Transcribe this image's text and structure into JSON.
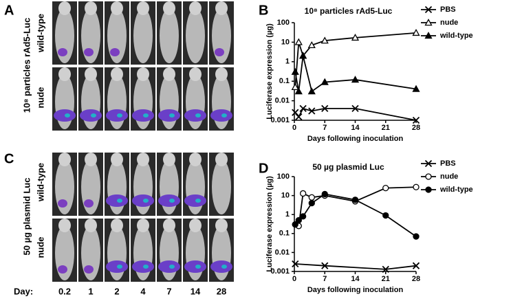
{
  "figure": {
    "panel_labels": [
      "A",
      "B",
      "C",
      "D"
    ],
    "panel_a": {
      "side_label": "10⁸ particles rAd5-Luc",
      "row_labels": [
        "wild-type",
        "nude"
      ]
    },
    "panel_c": {
      "side_label": "50 µg plasmid Luc",
      "row_labels": [
        "wild-type",
        "nude"
      ]
    },
    "day_label": "Day:",
    "days": [
      "0.2",
      "1",
      "2",
      "4",
      "7",
      "14",
      "28"
    ]
  },
  "chart_data": [
    {
      "type": "line",
      "title": "10⁸ particles rAd5-Luc",
      "y_label": "Luciferase expression (µg)",
      "x_label": "Days following inoculation",
      "log_y": true,
      "xlim": [
        0,
        28
      ],
      "xticks": [
        0,
        7,
        14,
        21,
        28
      ],
      "ylim": [
        0.001,
        100
      ],
      "yticks": [
        0.001,
        0.01,
        0.1,
        1,
        10,
        100
      ],
      "series": [
        {
          "name": "PBS",
          "color": "#000000",
          "marker": "x",
          "x": [
            0.2,
            1,
            2,
            4,
            7,
            14,
            28
          ],
          "values": [
            0.0025,
            0.0015,
            0.004,
            0.003,
            0.004,
            0.004,
            0.001
          ]
        },
        {
          "name": "nude",
          "color": "#000000",
          "marker": "triangle-open",
          "x": [
            0.2,
            1,
            2,
            4,
            7,
            14,
            28
          ],
          "values": [
            0.05,
            10,
            2,
            7,
            12,
            17,
            30
          ]
        },
        {
          "name": "wild-type",
          "color": "#000000",
          "marker": "triangle",
          "x": [
            0.2,
            1,
            2,
            4,
            7,
            14,
            28
          ],
          "values": [
            0.3,
            0.03,
            2,
            0.03,
            0.09,
            0.12,
            0.04
          ]
        }
      ]
    },
    {
      "type": "line",
      "title": "50 µg plasmid Luc",
      "y_label": "Luciferase expression (µg)",
      "x_label": "Days following inoculation",
      "log_y": true,
      "xlim": [
        0,
        28
      ],
      "xticks": [
        0,
        7,
        14,
        21,
        28
      ],
      "ylim": [
        0.001,
        100
      ],
      "yticks": [
        0.001,
        0.01,
        0.1,
        1,
        10,
        100
      ],
      "series": [
        {
          "name": "PBS",
          "color": "#000000",
          "marker": "x",
          "x": [
            0.2,
            7,
            21,
            28
          ],
          "values": [
            0.0025,
            0.002,
            0.0013,
            0.002
          ]
        },
        {
          "name": "nude",
          "color": "#000000",
          "marker": "circle-open",
          "x": [
            0.2,
            1,
            2,
            4,
            7,
            14,
            21,
            28
          ],
          "values": [
            0.3,
            0.25,
            13,
            8,
            10,
            5,
            25,
            28
          ]
        },
        {
          "name": "wild-type",
          "color": "#000000",
          "marker": "circle",
          "x": [
            0.2,
            1,
            2,
            4,
            7,
            14,
            21,
            28
          ],
          "values": [
            0.3,
            0.5,
            0.8,
            4,
            12,
            6,
            0.9,
            0.07
          ]
        }
      ]
    }
  ]
}
